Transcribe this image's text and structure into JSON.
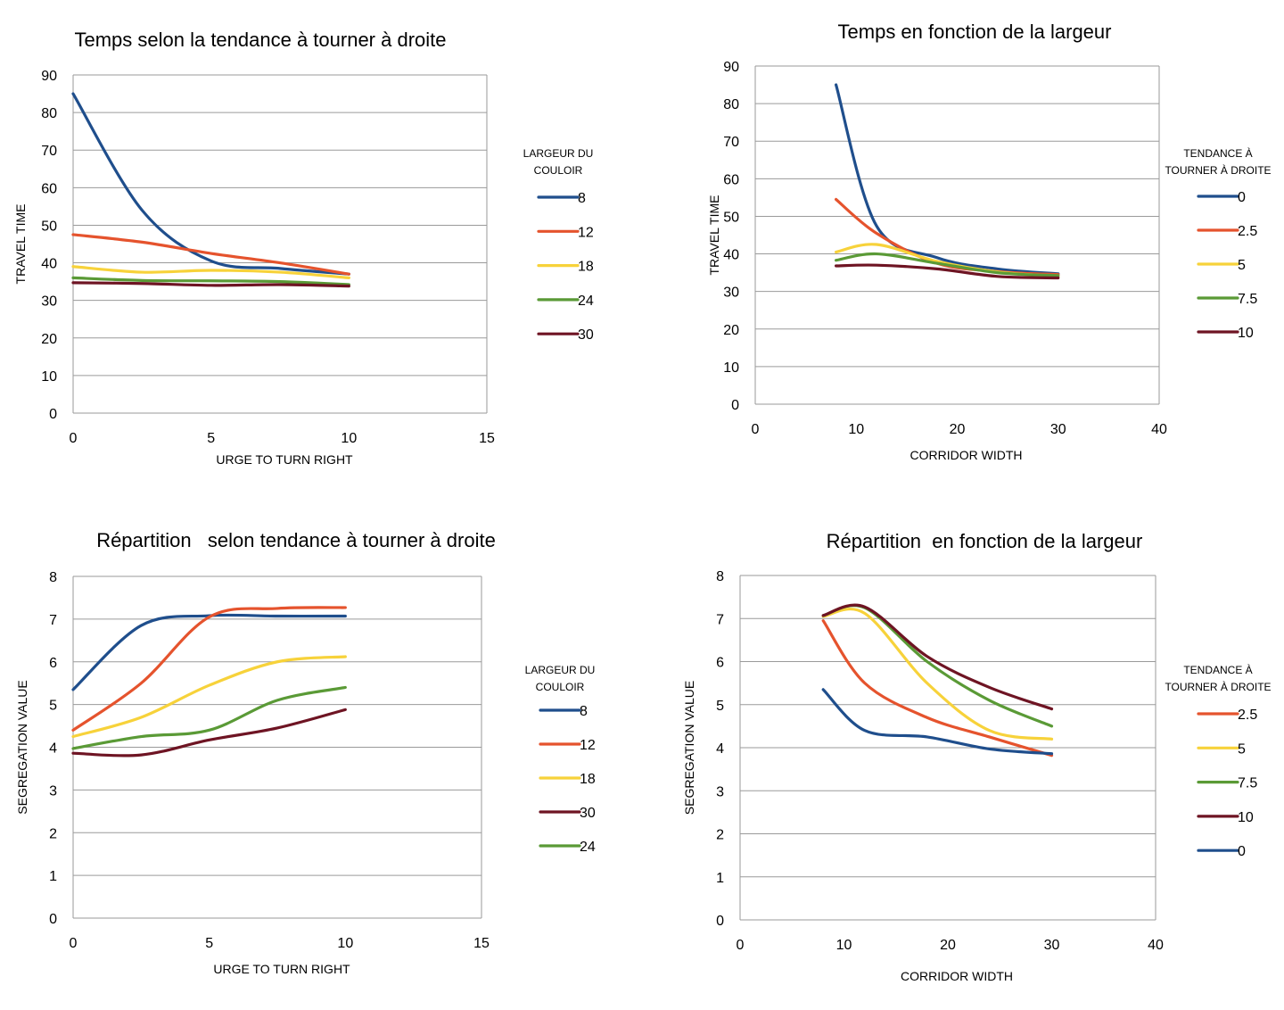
{
  "chart_data": [
    {
      "type": "line",
      "title": "Temps selon la tendance à tourner à droite",
      "xlabel": "URGE TO TURN RIGHT",
      "ylabel": "TRAVEL TIME",
      "xlim": [
        0,
        15
      ],
      "ylim": [
        0,
        90
      ],
      "xticks": [
        0,
        5,
        10,
        15
      ],
      "yticks": [
        0,
        10,
        20,
        30,
        40,
        50,
        60,
        70,
        80,
        90
      ],
      "grid": true,
      "legend_title": [
        "LARGEUR DU",
        "COULOIR"
      ],
      "legend_position": "right",
      "series": [
        {
          "name": "8",
          "color": "#1f4e8c",
          "x": [
            0,
            2.5,
            5,
            7.5,
            10
          ],
          "y": [
            85,
            54,
            40.5,
            38.5,
            37
          ]
        },
        {
          "name": "12",
          "color": "#e5532d",
          "x": [
            0,
            2.5,
            5,
            7.5,
            10
          ],
          "y": [
            47.5,
            45.5,
            42.5,
            40,
            37
          ]
        },
        {
          "name": "18",
          "color": "#f7d23a",
          "x": [
            0,
            2.5,
            5,
            7.5,
            10
          ],
          "y": [
            39,
            37.5,
            38,
            37.5,
            36
          ]
        },
        {
          "name": "24",
          "color": "#5a9a36",
          "x": [
            0,
            2.5,
            5,
            7.5,
            10
          ],
          "y": [
            36,
            35.3,
            35.2,
            35,
            34.2
          ]
        },
        {
          "name": "30",
          "color": "#6e1423",
          "x": [
            0,
            2.5,
            5,
            7.5,
            10
          ],
          "y": [
            34.7,
            34.5,
            34,
            34.2,
            33.8
          ]
        }
      ]
    },
    {
      "type": "line",
      "title": "Temps en fonction de la largeur",
      "xlabel": "CORRIDOR WIDTH",
      "ylabel": "TRAVEL TIME",
      "xlim": [
        0,
        40
      ],
      "ylim": [
        0,
        90
      ],
      "xticks": [
        0,
        10,
        20,
        30,
        40
      ],
      "yticks": [
        0,
        10,
        20,
        30,
        40,
        50,
        60,
        70,
        80,
        90
      ],
      "grid": true,
      "legend_title": [
        "TENDANCE À",
        "TOURNER À DROITE"
      ],
      "legend_position": "right",
      "series": [
        {
          "name": "0",
          "color": "#1f4e8c",
          "x": [
            8,
            12,
            18,
            24,
            30
          ],
          "y": [
            85,
            47.5,
            39,
            36,
            34.7
          ]
        },
        {
          "name": "2.5",
          "color": "#e5532d",
          "x": [
            8,
            12,
            18,
            24,
            30
          ],
          "y": [
            54.5,
            45.5,
            37.5,
            35.3,
            34.5
          ]
        },
        {
          "name": "5",
          "color": "#f7d23a",
          "x": [
            8,
            12,
            18,
            24,
            30
          ],
          "y": [
            40.5,
            42.5,
            38,
            35.2,
            34
          ]
        },
        {
          "name": "7.5",
          "color": "#5a9a36",
          "x": [
            8,
            12,
            18,
            24,
            30
          ],
          "y": [
            38.3,
            40,
            37.5,
            35,
            34.2
          ]
        },
        {
          "name": "10",
          "color": "#6e1423",
          "x": [
            8,
            12,
            18,
            24,
            30
          ],
          "y": [
            36.8,
            37,
            36,
            34,
            33.6
          ]
        }
      ]
    },
    {
      "type": "line",
      "title": "Répartition   selon tendance à tourner à droite",
      "xlabel": "URGE TO TURN RIGHT",
      "ylabel": "SEGREGATION VALUE",
      "xlim": [
        0,
        15
      ],
      "ylim": [
        0,
        8
      ],
      "xticks": [
        0,
        5,
        10,
        15
      ],
      "yticks": [
        0,
        1,
        2,
        3,
        4,
        5,
        6,
        7,
        8
      ],
      "grid": true,
      "legend_title": [
        "LARGEUR DU",
        "COULOIR"
      ],
      "legend_position": "right",
      "series": [
        {
          "name": "8",
          "color": "#1f4e8c",
          "x": [
            0,
            2.5,
            5,
            7.5,
            10
          ],
          "y": [
            5.35,
            6.85,
            7.08,
            7.07,
            7.07
          ]
        },
        {
          "name": "12",
          "color": "#e5532d",
          "x": [
            0,
            2.5,
            5,
            7.5,
            10
          ],
          "y": [
            4.4,
            5.5,
            7.05,
            7.25,
            7.27
          ]
        },
        {
          "name": "18",
          "color": "#f7d23a",
          "x": [
            0,
            2.5,
            5,
            7.5,
            10
          ],
          "y": [
            4.25,
            4.7,
            5.45,
            6.0,
            6.12
          ]
        },
        {
          "name": "30",
          "color": "#6e1423",
          "x": [
            0,
            2.5,
            5,
            7.5,
            10
          ],
          "y": [
            3.86,
            3.82,
            4.17,
            4.45,
            4.88
          ]
        },
        {
          "name": "24",
          "color": "#5a9a36",
          "x": [
            0,
            2.5,
            5,
            7.5,
            10
          ],
          "y": [
            3.97,
            4.25,
            4.4,
            5.1,
            5.4
          ]
        }
      ]
    },
    {
      "type": "line",
      "title": "Répartition  en fonction de la largeur",
      "xlabel": "CORRIDOR WIDTH",
      "ylabel": "SEGREGATION VALUE",
      "xlim": [
        0,
        40
      ],
      "ylim": [
        0,
        8
      ],
      "xticks": [
        0,
        10,
        20,
        30,
        40
      ],
      "yticks": [
        0,
        1,
        2,
        3,
        4,
        5,
        6,
        7,
        8
      ],
      "grid": true,
      "legend_title": [
        "TENDANCE À",
        "TOURNER À DROITE"
      ],
      "legend_position": "right",
      "series": [
        {
          "name": "2.5",
          "color": "#e5532d",
          "x": [
            8,
            12,
            18,
            24,
            30
          ],
          "y": [
            6.95,
            5.5,
            4.7,
            4.25,
            3.82
          ]
        },
        {
          "name": "5",
          "color": "#f7d23a",
          "x": [
            8,
            12,
            18,
            24,
            30
          ],
          "y": [
            7.05,
            7.12,
            5.5,
            4.4,
            4.2
          ]
        },
        {
          "name": "7.5",
          "color": "#5a9a36",
          "x": [
            8,
            12,
            18,
            24,
            30
          ],
          "y": [
            7.07,
            7.25,
            6.0,
            5.1,
            4.5
          ]
        },
        {
          "name": "10",
          "color": "#6e1423",
          "x": [
            8,
            12,
            18,
            24,
            30
          ],
          "y": [
            7.07,
            7.27,
            6.12,
            5.4,
            4.9
          ]
        },
        {
          "name": "0",
          "color": "#1f4e8c",
          "x": [
            8,
            12,
            18,
            24,
            30
          ],
          "y": [
            5.35,
            4.4,
            4.25,
            3.97,
            3.86
          ]
        }
      ]
    }
  ]
}
